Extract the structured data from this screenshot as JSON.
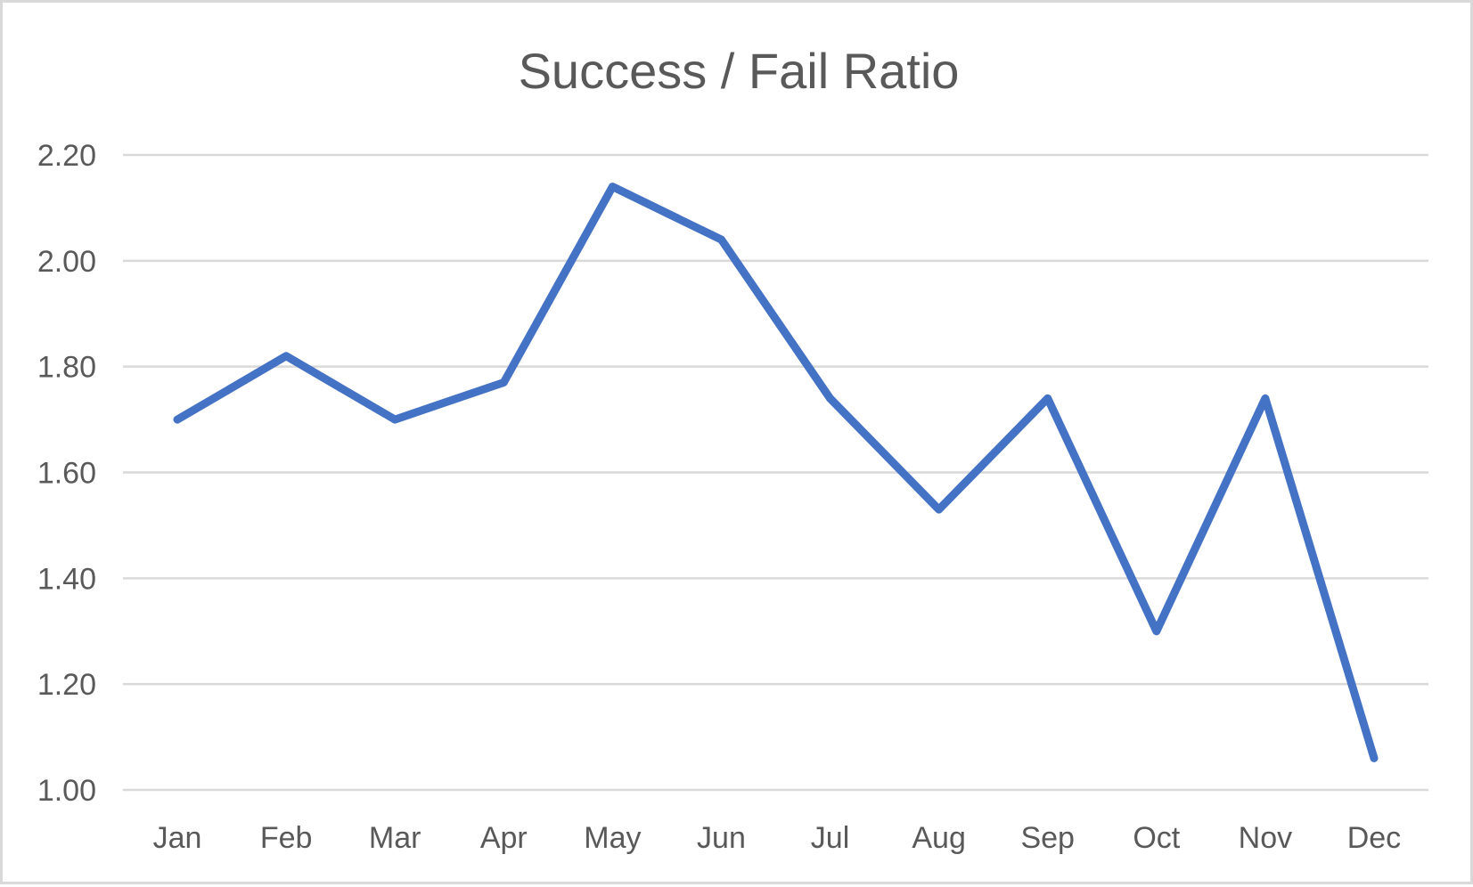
{
  "chart_data": {
    "type": "line",
    "title": "Success / Fail Ratio",
    "xlabel": "",
    "ylabel": "",
    "categories": [
      "Jan",
      "Feb",
      "Mar",
      "Apr",
      "May",
      "Jun",
      "Jul",
      "Aug",
      "Sep",
      "Oct",
      "Nov",
      "Dec"
    ],
    "series": [
      {
        "values": [
          1.7,
          1.82,
          1.7,
          1.77,
          2.14,
          2.04,
          1.74,
          1.53,
          1.74,
          1.3,
          1.74,
          1.06
        ],
        "color": "#4472c4"
      }
    ],
    "ylim": [
      1.0,
      2.2
    ],
    "yticks": [
      1.0,
      1.2,
      1.4,
      1.6,
      1.8,
      2.0,
      2.2
    ],
    "ytick_labels": [
      "1.00",
      "1.20",
      "1.40",
      "1.60",
      "1.80",
      "2.00",
      "2.20"
    ],
    "grid": true,
    "legend": "none"
  }
}
